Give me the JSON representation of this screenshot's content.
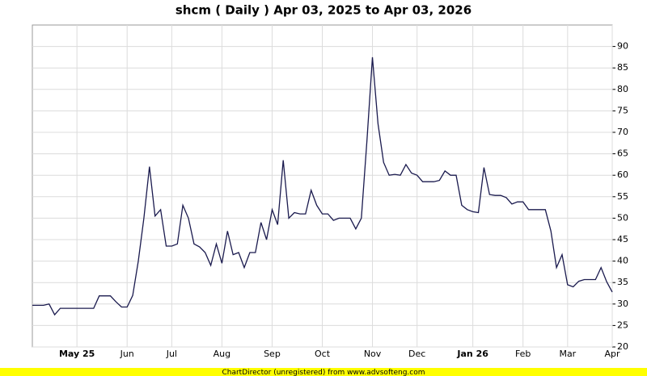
{
  "chart_data": {
    "type": "line",
    "title": "shcm ( Daily ) Apr 03, 2025 to Apr 03, 2026",
    "footer": "ChartDirector (unregistered) from www.advsofteng.com",
    "categories": [
      null,
      null,
      null,
      null,
      null,
      null,
      null,
      null,
      "May 25",
      null,
      null,
      null,
      null,
      null,
      null,
      null,
      null,
      "Jun",
      null,
      null,
      null,
      null,
      null,
      null,
      null,
      "Jul",
      null,
      null,
      null,
      null,
      null,
      null,
      null,
      null,
      "Aug",
      null,
      null,
      null,
      null,
      null,
      null,
      null,
      null,
      "Sep",
      null,
      null,
      null,
      null,
      null,
      null,
      null,
      null,
      "Oct",
      null,
      null,
      null,
      null,
      null,
      null,
      null,
      null,
      "Nov",
      null,
      null,
      null,
      null,
      null,
      null,
      null,
      "Dec",
      null,
      null,
      null,
      null,
      null,
      null,
      null,
      null,
      null,
      "Jan 26",
      null,
      null,
      null,
      null,
      null,
      null,
      null,
      null,
      "Feb",
      null,
      null,
      null,
      null,
      null,
      null,
      null,
      "Mar",
      null,
      null,
      null,
      null,
      null,
      null,
      null,
      "Apr"
    ],
    "series": [
      {
        "name": "shcm",
        "color": "#1a1a4e",
        "values": [
          29.7,
          29.7,
          29.7,
          30,
          27.5,
          29,
          29,
          29,
          29,
          29,
          29,
          29,
          31.9,
          31.9,
          31.9,
          30.5,
          29.3,
          29.3,
          32,
          40,
          50,
          62,
          50.5,
          52,
          43.5,
          43.5,
          44,
          53,
          50,
          44,
          43.3,
          42,
          39,
          44,
          39.5,
          47,
          41.5,
          42,
          38.5,
          42,
          42,
          49,
          45,
          52,
          48.5,
          63.5,
          50,
          51.3,
          51,
          51,
          56.5,
          53,
          51,
          51,
          49.5,
          50,
          50,
          50,
          47.5,
          50,
          68,
          87.5,
          72,
          63,
          60,
          60.2,
          60,
          62.5,
          60.5,
          60,
          58.5,
          58.5,
          58.5,
          58.8,
          61,
          60,
          60,
          53,
          52,
          51.5,
          51.3,
          61.8,
          55.5,
          55.3,
          55.3,
          54.8,
          53.3,
          53.8,
          53.8,
          52,
          52,
          52,
          52,
          47,
          38.5,
          41.5,
          34.5,
          34,
          35.3,
          35.7,
          35.7,
          35.7,
          38.5,
          35.2,
          32.8
        ]
      }
    ],
    "ylim": [
      20,
      95
    ],
    "yticks": [
      20,
      25,
      30,
      35,
      40,
      45,
      50,
      55,
      60,
      65,
      70,
      75,
      80,
      85,
      90
    ],
    "grid": true
  }
}
